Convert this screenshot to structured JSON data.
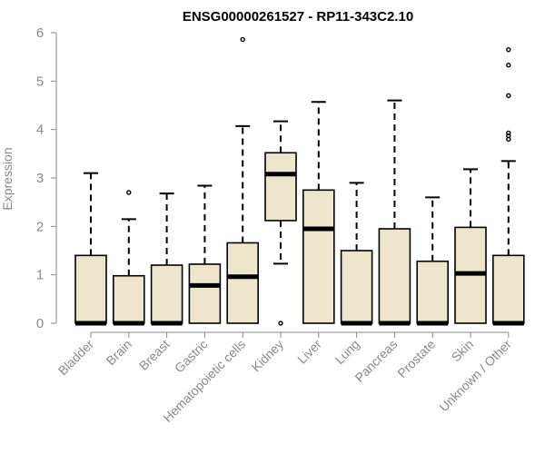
{
  "chart_data": {
    "type": "boxplot",
    "title": "ENSG00000261527 - RP11-343C2.10",
    "ylabel": "Expression",
    "xlabel": "",
    "ylim": [
      0,
      6
    ],
    "yticks": [
      0,
      1,
      2,
      3,
      4,
      5,
      6
    ],
    "grid": false,
    "box_color": "#ede6cc",
    "categories": [
      "Bladder",
      "Brain",
      "Breast",
      "Gastric",
      "Hematopoietic cells",
      "Kidney",
      "Liver",
      "Lung",
      "Pancreas",
      "Prostate",
      "Skin",
      "Unknown / Other"
    ],
    "boxes": [
      {
        "whisker_low": 0,
        "q1": 0,
        "median": 0,
        "q3": 1.4,
        "whisker_high": 3.1,
        "outliers": []
      },
      {
        "whisker_low": 0,
        "q1": 0,
        "median": 0,
        "q3": 0.98,
        "whisker_high": 2.15,
        "outliers": [
          2.7
        ]
      },
      {
        "whisker_low": 0,
        "q1": 0,
        "median": 0,
        "q3": 1.2,
        "whisker_high": 2.68,
        "outliers": []
      },
      {
        "whisker_low": 0,
        "q1": 0,
        "median": 0.78,
        "q3": 1.22,
        "whisker_high": 2.84,
        "outliers": []
      },
      {
        "whisker_low": 0,
        "q1": 0,
        "median": 0.96,
        "q3": 1.66,
        "whisker_high": 4.07,
        "outliers": [
          5.86
        ]
      },
      {
        "whisker_low": 1.23,
        "q1": 2.12,
        "median": 3.08,
        "q3": 3.52,
        "whisker_high": 4.17,
        "outliers": [
          0
        ]
      },
      {
        "whisker_low": 0,
        "q1": 0,
        "median": 1.95,
        "q3": 2.75,
        "whisker_high": 4.57,
        "outliers": []
      },
      {
        "whisker_low": 0,
        "q1": 0,
        "median": 0,
        "q3": 1.5,
        "whisker_high": 2.9,
        "outliers": []
      },
      {
        "whisker_low": 0,
        "q1": 0,
        "median": 0,
        "q3": 1.95,
        "whisker_high": 4.6,
        "outliers": []
      },
      {
        "whisker_low": 0,
        "q1": 0,
        "median": 0,
        "q3": 1.28,
        "whisker_high": 2.6,
        "outliers": []
      },
      {
        "whisker_low": 0,
        "q1": 0,
        "median": 1.03,
        "q3": 1.98,
        "whisker_high": 3.18,
        "outliers": []
      },
      {
        "whisker_low": 0,
        "q1": 0,
        "median": 0,
        "q3": 1.4,
        "whisker_high": 3.35,
        "outliers": [
          3.8,
          3.87,
          3.93,
          4.7,
          5.33,
          5.65
        ]
      }
    ]
  }
}
